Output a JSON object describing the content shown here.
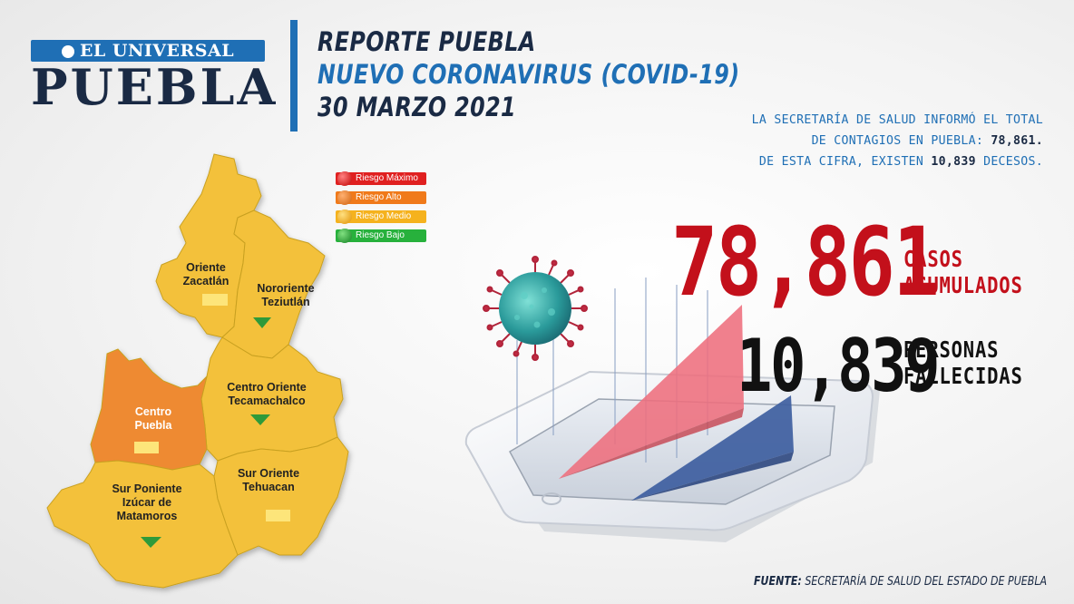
{
  "brand": {
    "bar_text": "EL UNIVERSAL",
    "city_text": "PUEBLA"
  },
  "header": {
    "line1": "REPORTE PUEBLA",
    "line2": "NUEVO CORONAVIRUS (COVID-19)",
    "line3": "30 MARZO 2021"
  },
  "info": {
    "line1": "LA SECRETARÍA DE SALUD  INFORMÓ EL TOTAL",
    "line2_prefix": "DE CONTAGIOS EN PUEBLA: ",
    "line2_value": "78,861.",
    "line3_prefix": "DE ESTA CIFRA, EXISTEN ",
    "line3_value": "10,839",
    "line3_suffix": " DECESOS."
  },
  "legend": [
    {
      "label": "Riesgo Máximo",
      "color": "#e02020"
    },
    {
      "label": "Riesgo Alto",
      "color": "#f07a1a"
    },
    {
      "label": "Riesgo Medio",
      "color": "#f5b21e"
    },
    {
      "label": "Riesgo Bajo",
      "color": "#27b13c"
    }
  ],
  "regions": [
    {
      "name": "Oriente Zacatlán",
      "line1": "Oriente",
      "line2": "Zacatlán",
      "risk": "Riesgo Medio",
      "indicator": "square"
    },
    {
      "name": "Nororiente Teziutlán",
      "line1": "Nororiente",
      "line2": "Teziutlán",
      "risk": "Riesgo Medio",
      "indicator": "down-triangle"
    },
    {
      "name": "Centro Oriente Tecamachalco",
      "line1": "Centro Oriente",
      "line2": "Tecamachalco",
      "risk": "Riesgo Medio",
      "indicator": "down-triangle"
    },
    {
      "name": "Centro Puebla",
      "line1": "Centro",
      "line2": "Puebla",
      "risk": "Riesgo Alto",
      "indicator": "square"
    },
    {
      "name": "Sur Poniente Izúcar de Matamoros",
      "line1": "Sur Poniente",
      "line2": "Izúcar de",
      "line3": "Matamoros",
      "risk": "Riesgo Medio",
      "indicator": "down-triangle"
    },
    {
      "name": "Sur Oriente Tehuacan",
      "line1": "Sur Oriente",
      "line2": "Tehuacan",
      "risk": "Riesgo Medio",
      "indicator": "square"
    }
  ],
  "colors": {
    "risk_medio_fill": "#f3c13a",
    "risk_alto_fill": "#ee8a30",
    "indicator_square": "#fde57a",
    "indicator_down": "#2f9a3a",
    "accent_blue": "#1f6fb5",
    "accent_red": "#c3101b",
    "navy": "#1a2a44"
  },
  "stats": {
    "cases_value": "78,861",
    "cases_label_1": "CASOS",
    "cases_label_2": "ACUMULADOS",
    "deaths_value": "10,839",
    "deaths_label_1": "PERSONAS",
    "deaths_label_2": "FALLECIDAS"
  },
  "source": {
    "key": "FUENTE:",
    "value": " SECRETARÍA DE SALUD DEL ESTADO DE PUEBLA"
  }
}
